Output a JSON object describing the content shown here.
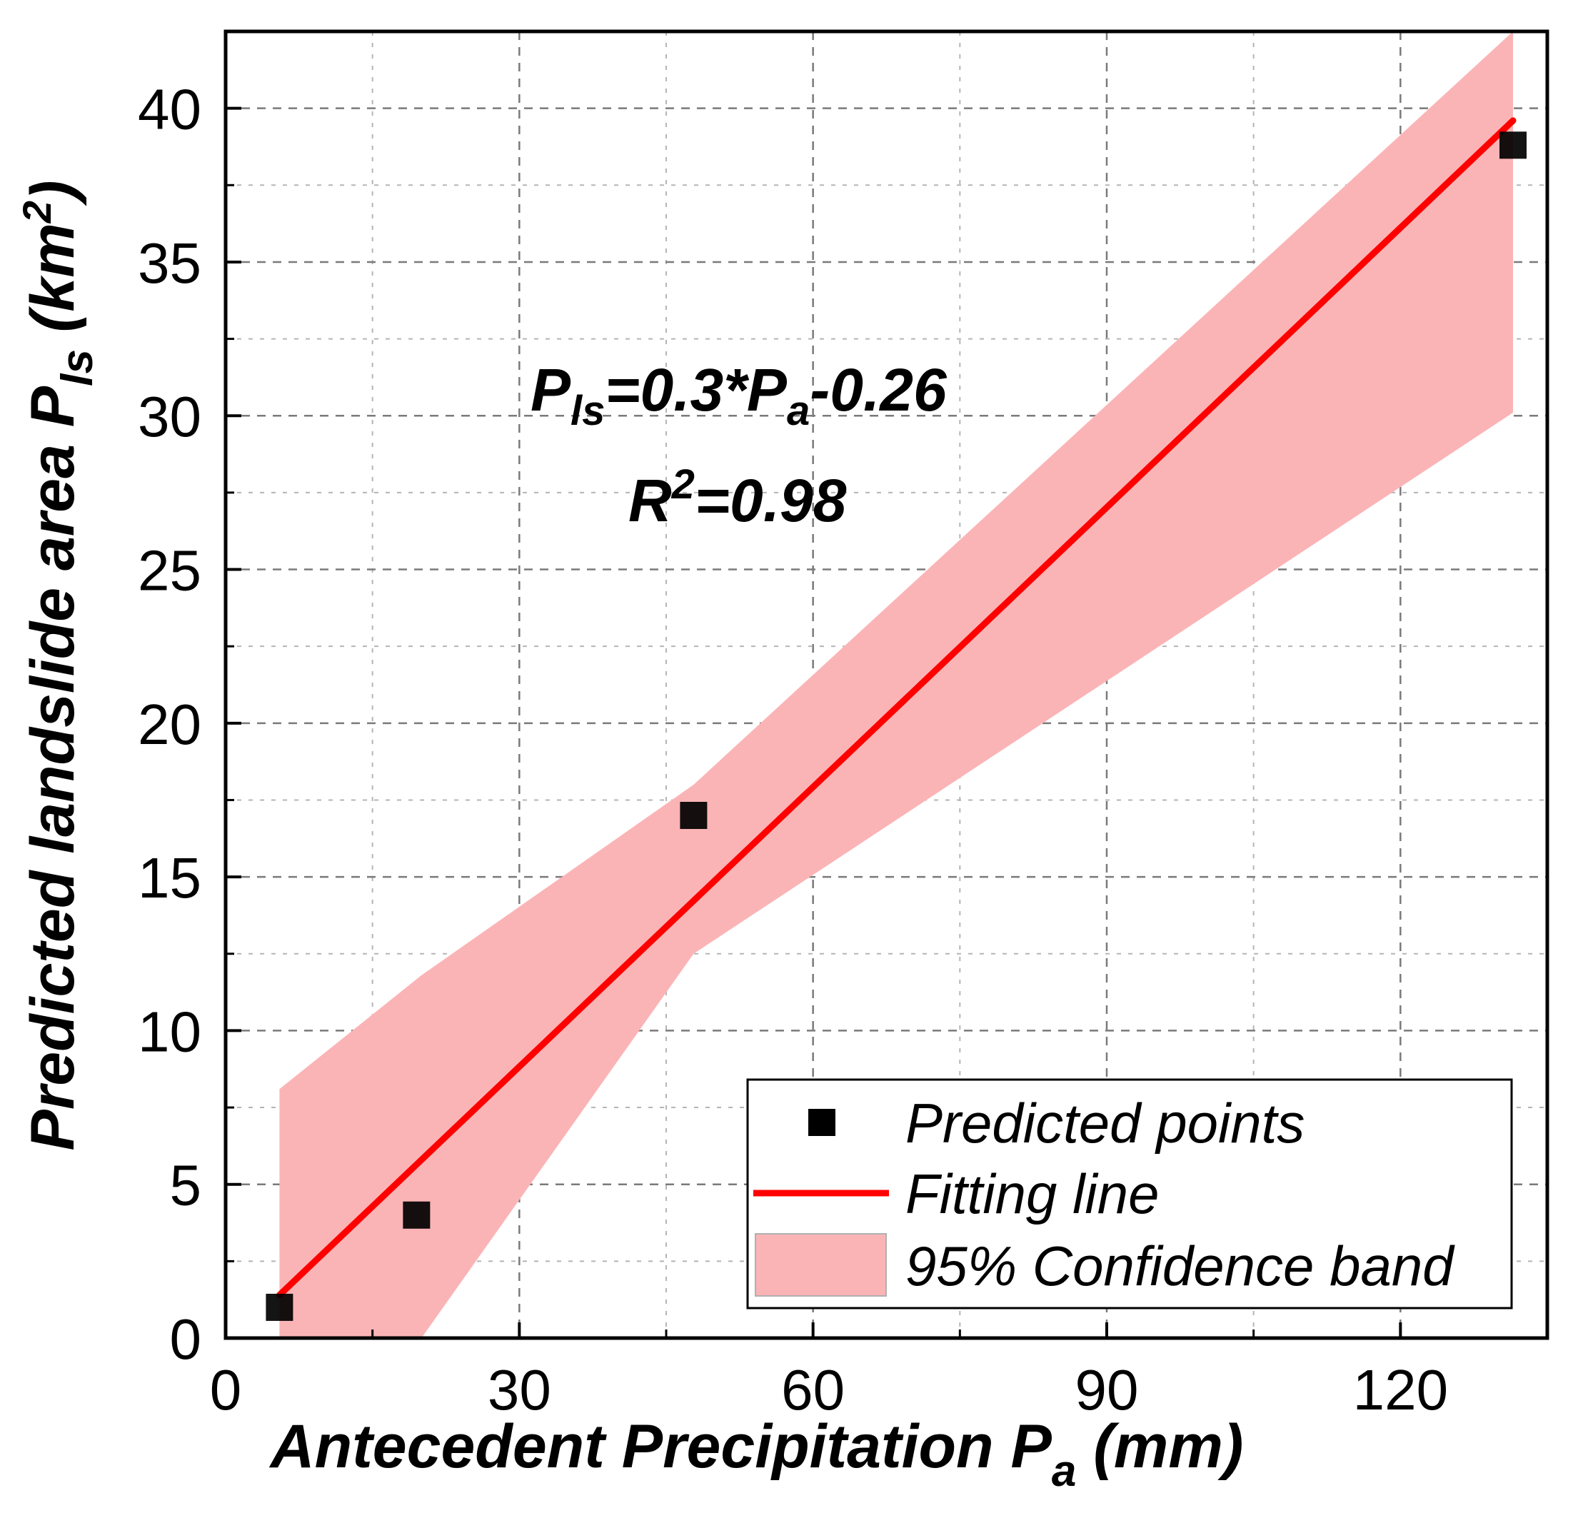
{
  "chart_data": {
    "type": "scatter",
    "xlabel": {
      "main": "Antecedent Precipitation  P",
      "sub": "a",
      "unit": " (mm)"
    },
    "ylabel": {
      "main": "Predicted landslide area P",
      "sub": "ls",
      "unit_pre": " (km",
      "sup": "2",
      "unit_post": ")"
    },
    "xlim": [
      0,
      135
    ],
    "ylim": [
      0,
      42.5
    ],
    "x_ticks": [
      0,
      30,
      60,
      90,
      120
    ],
    "y_ticks": [
      0,
      5,
      10,
      15,
      20,
      25,
      30,
      35,
      40
    ],
    "grid": true,
    "series": [
      {
        "name": "Predicted points",
        "kind": "scatter",
        "x": [
          5.5,
          19.5,
          47.8,
          131.5
        ],
        "y": [
          1.0,
          4.0,
          17.0,
          38.8
        ],
        "color": "#000000"
      },
      {
        "name": "Fitting line",
        "kind": "line",
        "x": [
          5.5,
          131.5
        ],
        "y": [
          1.4,
          39.6
        ],
        "color": "#ff0000"
      },
      {
        "name": "95% Confidence band",
        "kind": "band",
        "x": [
          5.5,
          20,
          47.8,
          131.5
        ],
        "upper": [
          8.1,
          11.8,
          18.0,
          42.5
        ],
        "lower": [
          0.0,
          0.0,
          12.5,
          30.1
        ],
        "color": "#fbb4b6"
      }
    ],
    "equation": {
      "line1": {
        "p": "P",
        "p_sub": "ls",
        "mid": "=0.3*P",
        "mid_sub": "a",
        "end": "-0.26"
      },
      "line2": {
        "r": "R",
        "r_sup": "2",
        "end": "=0.98"
      }
    },
    "legend": {
      "position": "bottom-right",
      "entries": [
        "Predicted points",
        "Fitting line",
        "95% Confidence band"
      ]
    }
  }
}
